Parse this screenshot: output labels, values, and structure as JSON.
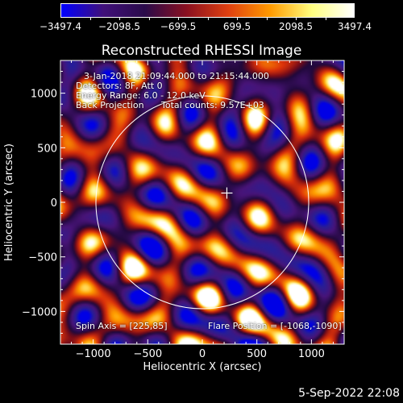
{
  "colorbar": {
    "tick_labels": [
      "−3497.4",
      "−2098.5",
      "−699.5",
      "699.5",
      "2098.5",
      "3497.4"
    ],
    "colors": [
      "#0000ff",
      "#40107a",
      "#2a0b4a",
      "#8a1020",
      "#e04010",
      "#ff9a00",
      "#ffff80",
      "#ffffff"
    ]
  },
  "title": "Reconstructed RHESSI Image",
  "info": {
    "line1": "3-Jan-2018 21:09:44.000 to 21:15:44.000",
    "line2": "Detectors: 8F, Att 0",
    "line3": "Energy Range: 6.0 - 12.0 keV",
    "line4": "Back Projection",
    "line5": "Total counts: 9.57E+03",
    "spin_axis": "Spin Axis = [225,85]",
    "flare_position": "Flare Position = [-1068,-1090]"
  },
  "footer_date": "5-Sep-2022 22:08",
  "chart_data": {
    "type": "heatmap",
    "title": "Reconstructed RHESSI Image",
    "xlabel": "Heliocentric X (arcsec)",
    "ylabel": "Heliocentric Y (arcsec)",
    "xlim": [
      -1300,
      1300
    ],
    "ylim": [
      -1300,
      1300
    ],
    "xticks": [
      -1000,
      -500,
      0,
      500,
      1000
    ],
    "xtick_labels": [
      "−1000",
      "−500",
      "0",
      "500",
      "1000"
    ],
    "yticks": [
      -1000,
      -500,
      0,
      500,
      1000
    ],
    "ytick_labels": [
      "−1000",
      "−500",
      "0",
      "500",
      "1000"
    ],
    "value_range": [
      -3497.4,
      3497.4
    ],
    "solar_limb_radius": 975,
    "marker": [
      225,
      85
    ]
  }
}
